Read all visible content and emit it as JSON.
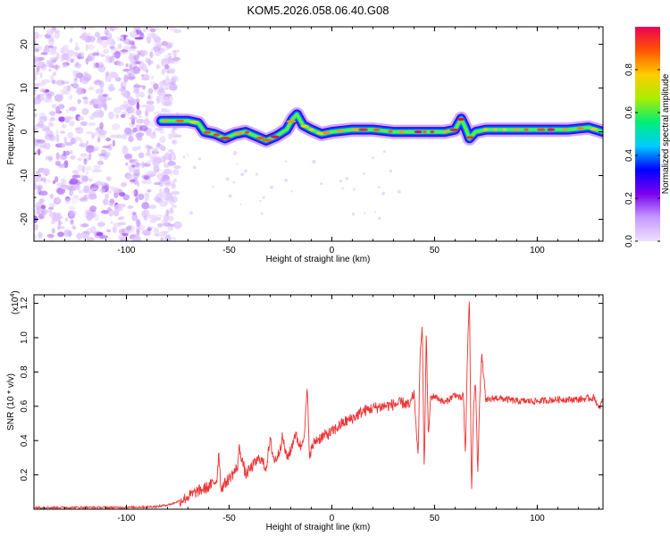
{
  "figure": {
    "title": "KOM5.2026.058.06.40.G08"
  },
  "chart_data": [
    {
      "type": "heatmap",
      "name": "spectrogram",
      "xlabel": "Height of straight line (km)",
      "ylabel": "Frequency (Hz)",
      "xlim": [
        -145,
        132
      ],
      "ylim": [
        -25,
        24
      ],
      "xticks": [
        -100,
        -50,
        0,
        50,
        100
      ],
      "yticks": [
        -20,
        -10,
        0,
        10,
        20
      ],
      "noise_region": {
        "x_range": [
          -145,
          -75
        ],
        "y_range": [
          -25,
          24
        ]
      },
      "ridge": {
        "x": [
          -83,
          -75,
          -70,
          -65,
          -62,
          -57,
          -52,
          -47,
          -42,
          -37,
          -32,
          -27,
          -22,
          -19,
          -17,
          -14,
          -10,
          -5,
          0,
          10,
          20,
          30,
          40,
          50,
          55,
          60,
          63,
          65,
          67,
          70,
          75,
          85,
          95,
          105,
          115,
          125,
          132
        ],
        "y": [
          2.5,
          2.5,
          2.5,
          2.0,
          0.0,
          -0.5,
          -1.5,
          -0.5,
          0.0,
          -1.0,
          -2.0,
          -1.0,
          0.5,
          3.0,
          4.0,
          1.5,
          0.5,
          -0.5,
          0.0,
          0.5,
          0.5,
          0.0,
          0.0,
          0.0,
          0.0,
          0.5,
          3.0,
          1.0,
          -1.5,
          0.0,
          0.5,
          0.5,
          0.5,
          0.5,
          0.5,
          1.0,
          0.0
        ]
      },
      "colorbar": {
        "label": "Normalized spectral amplitude",
        "range": [
          0.0,
          1.0
        ],
        "ticks": [
          "0.0",
          "0.2",
          "0.4",
          "0.6",
          "0.8"
        ],
        "colors": [
          "#f0e0ff",
          "#c49aff",
          "#7a00ee",
          "#0000ff",
          "#00ccff",
          "#00ee77",
          "#aaee00",
          "#ffcc00",
          "#ff5500",
          "#ee0055"
        ]
      }
    },
    {
      "type": "line",
      "name": "snr",
      "xlabel": "Height of straight line (km)",
      "ylabel": "SNR (10 * v/v)",
      "multiplier": "(x10",
      "multiplier_exp": "4",
      "multiplier_close": ")",
      "xlim": [
        -145,
        132
      ],
      "ylim": [
        0.0,
        1.25
      ],
      "xticks": [
        -100,
        -50,
        0,
        50,
        100
      ],
      "yticks": [
        "0.2",
        "0.4",
        "0.6",
        "0.8",
        "1.0",
        "1.2"
      ],
      "color": "#ee3333",
      "series": [
        {
          "name": "SNR",
          "x": [
            -145,
            -120,
            -100,
            -85,
            -78,
            -72,
            -66,
            -60,
            -56,
            -55,
            -54,
            -50,
            -46,
            -45,
            -42,
            -38,
            -35,
            -32,
            -30,
            -28,
            -26,
            -24,
            -22,
            -20,
            -18,
            -15,
            -13,
            -12,
            -11,
            -8,
            -5,
            0,
            5,
            10,
            15,
            20,
            25,
            30,
            35,
            38,
            40,
            42,
            43,
            44,
            45,
            46,
            47,
            48,
            50,
            55,
            60,
            63,
            64,
            65,
            66,
            67,
            68,
            69,
            70,
            71,
            72,
            73,
            75,
            80,
            90,
            100,
            110,
            120,
            128,
            130,
            132
          ],
          "y": [
            0.01,
            0.01,
            0.01,
            0.015,
            0.03,
            0.06,
            0.1,
            0.13,
            0.17,
            0.34,
            0.12,
            0.18,
            0.24,
            0.36,
            0.2,
            0.26,
            0.3,
            0.24,
            0.4,
            0.28,
            0.32,
            0.42,
            0.3,
            0.34,
            0.44,
            0.36,
            0.48,
            0.72,
            0.32,
            0.4,
            0.42,
            0.45,
            0.5,
            0.53,
            0.57,
            0.59,
            0.6,
            0.61,
            0.62,
            0.6,
            0.68,
            0.3,
            0.9,
            1.09,
            0.2,
            1.05,
            0.4,
            0.65,
            0.66,
            0.62,
            0.67,
            0.64,
            0.68,
            0.3,
            0.9,
            1.24,
            0.08,
            0.6,
            0.75,
            0.2,
            0.66,
            0.9,
            0.63,
            0.65,
            0.63,
            0.63,
            0.64,
            0.64,
            0.65,
            0.58,
            0.64
          ]
        }
      ]
    }
  ]
}
